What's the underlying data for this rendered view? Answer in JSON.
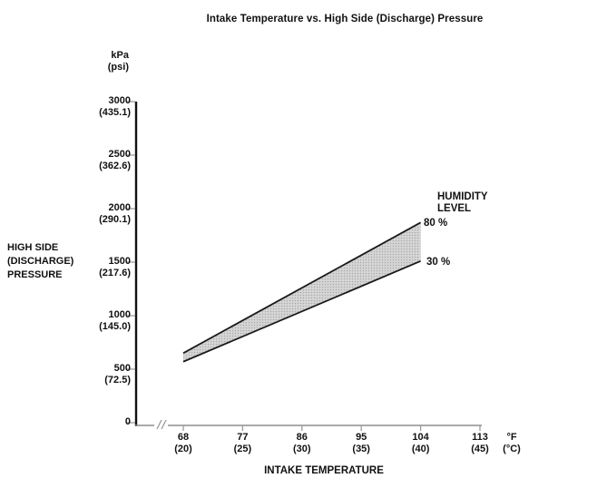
{
  "chart": {
    "title": "Intake Temperature vs. High Side (Discharge) Pressure",
    "y_unit": {
      "line1": "kPa",
      "line2": "(psi)"
    },
    "y_axis_title": {
      "line1": "HIGH SIDE",
      "line2": "(DISCHARGE)",
      "line3": "PRESSURE"
    },
    "x_axis_title": "INTAKE TEMPERATURE",
    "x_unit": {
      "line1": "°F",
      "line2": "(°C)"
    },
    "legend": {
      "title_line1": "HUMIDITY",
      "title_line2": "LEVEL",
      "upper_label": "80 %",
      "lower_label": "30 %"
    }
  },
  "chart_data": {
    "type": "area",
    "title": "Intake Temperature vs. High Side (Discharge) Pressure",
    "xlabel": "INTAKE TEMPERATURE",
    "ylabel": "HIGH SIDE (DISCHARGE) PRESSURE",
    "x_unit": "°F (°C)",
    "y_unit": "kPa (psi)",
    "x_ticks": [
      {
        "f": "68",
        "c": "(20)"
      },
      {
        "f": "77",
        "c": "(25)"
      },
      {
        "f": "86",
        "c": "(30)"
      },
      {
        "f": "95",
        "c": "(35)"
      },
      {
        "f": "104",
        "c": "(40)"
      },
      {
        "f": "113",
        "c": "(45)"
      }
    ],
    "y_ticks": [
      {
        "kpa": "3000",
        "psi": "(435.1)"
      },
      {
        "kpa": "2500",
        "psi": "(362.6)"
      },
      {
        "kpa": "2000",
        "psi": "(290.1)"
      },
      {
        "kpa": "1500",
        "psi": "(217.6)"
      },
      {
        "kpa": "1000",
        "psi": "(145.0)"
      },
      {
        "kpa": "500",
        "psi": "(72.5)"
      },
      {
        "kpa": "0",
        "psi": ""
      }
    ],
    "xlim_f": [
      68,
      113
    ],
    "ylim_kpa": [
      0,
      3000
    ],
    "axis_break_before_first_tick": true,
    "grid": false,
    "legend_position": "right of band end",
    "series": [
      {
        "name": "80 %",
        "humidity_percent": 80,
        "points_f_kpa": [
          [
            68,
            650
          ],
          [
            104,
            1870
          ]
        ]
      },
      {
        "name": "30 %",
        "humidity_percent": 30,
        "points_f_kpa": [
          [
            68,
            570
          ],
          [
            104,
            1510
          ]
        ]
      }
    ],
    "band": {
      "fill_base": "#d6d6d6",
      "fill_dot": "#a8a8a8",
      "edge_color": "#1a1a1a"
    },
    "axis_colors": {
      "y_axis": "#111111",
      "x_axis": "#8e8e8e",
      "ticks": "#9b9b9b"
    }
  }
}
